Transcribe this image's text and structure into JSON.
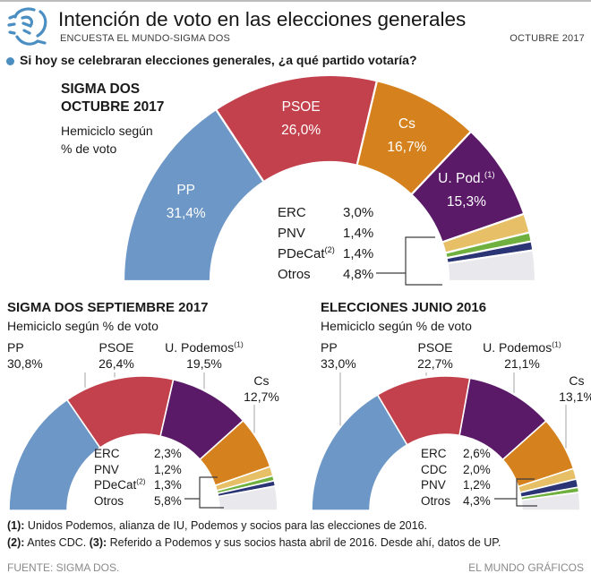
{
  "header": {
    "title": "Intención de voto en las elecciones generales",
    "subtitle": "ENCUESTA EL MUNDO-SIGMA DOS",
    "date": "OCTUBRE 2017",
    "logo_icon": "el-mundo-sketch-face-logo",
    "accent_blue": "#4a8ec2"
  },
  "question": "Si hoy se celebraran elecciones generales, ¿a qué partido votaría?",
  "chart_data": [
    {
      "type": "pie",
      "variant": "hemicycle-donut",
      "title": "SIGMA DOS OCTUBRE 2017",
      "title_line1": "SIGMA DOS",
      "title_line2": "OCTUBRE 2017",
      "subtitle_line1": "Hemiciclo según",
      "subtitle_line2": "% de voto",
      "unit": "%",
      "categories": [
        "PP",
        "PSOE",
        "Cs",
        "U. Pod.",
        "ERC",
        "PNV",
        "PDeCat",
        "Otros"
      ],
      "sups": [
        "",
        "",
        "",
        "(1)",
        "",
        "",
        "(2)",
        ""
      ],
      "values": [
        31.4,
        26.0,
        16.7,
        15.3,
        3.0,
        1.4,
        1.4,
        4.8
      ],
      "labels": [
        "31,4%",
        "26,0%",
        "16,7%",
        "15,3%",
        "3,0%",
        "1,4%",
        "1,4%",
        "4,8%"
      ],
      "colors": [
        "#6d97c6",
        "#c2414d",
        "#d5821e",
        "#5a1a68",
        "#e6bf66",
        "#70b03e",
        "#2b3575",
        "#e9e9ed"
      ],
      "major_count": 4,
      "legend_position": "inside-hole-right"
    },
    {
      "type": "pie",
      "variant": "hemicycle-donut",
      "title": "SIGMA DOS SEPTIEMBRE 2017",
      "title_line1": "SIGMA DOS SEPTIEMBRE 2017",
      "subtitle_line1": "Hemiciclo según % de voto",
      "unit": "%",
      "categories": [
        "PP",
        "PSOE",
        "U. Podemos",
        "Cs",
        "ERC",
        "PNV",
        "PDeCat",
        "Otros"
      ],
      "sups": [
        "",
        "",
        "(1)",
        "",
        "",
        "",
        "(2)",
        ""
      ],
      "values": [
        30.8,
        26.4,
        19.5,
        12.7,
        2.3,
        1.2,
        1.3,
        5.8
      ],
      "labels": [
        "30,8%",
        "26,4%",
        "19,5%",
        "12,7%",
        "2,3%",
        "1,2%",
        "1,3%",
        "5,8%"
      ],
      "colors": [
        "#6d97c6",
        "#c2414d",
        "#5a1a68",
        "#d5821e",
        "#e6bf66",
        "#70b03e",
        "#2b3575",
        "#e9e9ed"
      ],
      "major_count": 4,
      "legend_position": "inside-hole"
    },
    {
      "type": "pie",
      "variant": "hemicycle-donut",
      "title": "ELECCIONES JUNIO 2016",
      "title_line1": "ELECCIONES JUNIO 2016",
      "subtitle_line1": "Hemiciclo según % de voto",
      "unit": "%",
      "categories": [
        "PP",
        "PSOE",
        "U. Podemos",
        "Cs",
        "ERC",
        "CDC",
        "PNV",
        "Otros"
      ],
      "sups": [
        "",
        "",
        "(1)",
        "",
        "",
        "",
        "",
        ""
      ],
      "values": [
        33.0,
        22.7,
        21.1,
        13.1,
        2.6,
        2.0,
        1.2,
        4.3
      ],
      "labels": [
        "33,0%",
        "22,7%",
        "21,1%",
        "13,1%",
        "2,6%",
        "2,0%",
        "1,2%",
        "4,3%"
      ],
      "colors": [
        "#6d97c6",
        "#c2414d",
        "#5a1a68",
        "#d5821e",
        "#e6bf66",
        "#2b3575",
        "#70b03e",
        "#e9e9ed"
      ],
      "major_count": 4,
      "legend_position": "inside-hole"
    }
  ],
  "footnotes": [
    {
      "parts": [
        {
          "b": "(1):"
        },
        {
          "t": " Unidos Podemos, alianza de IU, Podemos y socios para las elecciones de 2016."
        }
      ]
    },
    {
      "parts": [
        {
          "b": "(2):"
        },
        {
          "t": " Antes CDC. "
        },
        {
          "b": "(3):"
        },
        {
          "t": " Referido a Podemos y sus socios hasta abril de 2016. Desde ahí, datos de UP."
        }
      ]
    }
  ],
  "footer": {
    "source": "FUENTE: SIGMA DOS.",
    "credit": "EL MUNDO GRÁFICOS"
  }
}
